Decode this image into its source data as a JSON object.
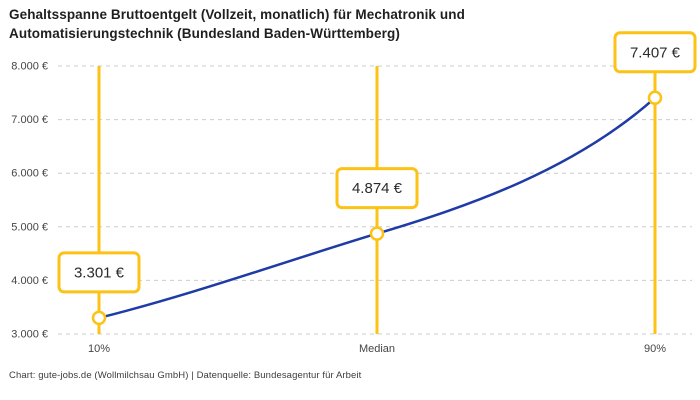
{
  "title": "Gehaltsspanne Bruttoentgelt (Vollzeit, monatlich) für Mechatronik und Automatisierungstechnik (Bundesland Baden-Württemberg)",
  "footer": "Chart: gute-jobs.de (Wollmilchsau GmbH) | Datenquelle: Bundesagentur für Arbeit",
  "chart_data": {
    "type": "line",
    "title": "Gehaltsspanne Bruttoentgelt (Vollzeit, monatlich) für Mechatronik und Automatisierungstechnik (Bundesland Baden-Württemberg)",
    "categories": [
      "10%",
      "Median",
      "90%"
    ],
    "values": [
      3301,
      4874,
      7407
    ],
    "value_labels": [
      "3.301 €",
      "4.874 €",
      "7.407 €"
    ],
    "ylim": [
      3000,
      8000
    ],
    "y_tick_step": 1000,
    "y_tick_labels": [
      "3.000 €",
      "4.000 €",
      "5.000 €",
      "6.000 €",
      "7.000 €",
      "8.000 €"
    ],
    "grid": "horizontal dashed",
    "legend": "none",
    "source": "Chart: gute-jobs.de (Wollmilchsau GmbH) | Datenquelle: Bundesagentur für Arbeit",
    "colors": {
      "line": "#1e3ba6",
      "highlight": "#fcc216",
      "grid": "#cbcbcb",
      "box_fill": "#ffffff",
      "box_text": "#2b2b2b",
      "axis_text": "#454545",
      "title_text": "#1f1f1f"
    }
  }
}
